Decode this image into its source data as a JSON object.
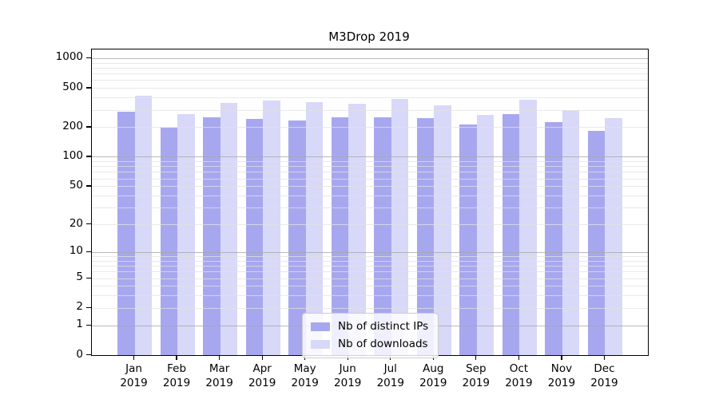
{
  "title": "M3Drop 2019",
  "colors": {
    "distinct_ips_bar": "#a7a7f0",
    "downloads_bar": "#d8d8f8",
    "grid_minor": "#e1e1e1",
    "grid_major": "#a8a8a8",
    "axis": "#000000",
    "legend_border": "#cccccc"
  },
  "legend": {
    "items": [
      {
        "label": "Nb of distinct IPs",
        "series": "distinct_ips"
      },
      {
        "label": "Nb of downloads",
        "series": "downloads"
      }
    ]
  },
  "chart_data": {
    "type": "bar",
    "title": "M3Drop 2019",
    "categories": [
      "Jan 2019",
      "Feb 2019",
      "Mar 2019",
      "Apr 2019",
      "May 2019",
      "Jun 2019",
      "Jul 2019",
      "Aug 2019",
      "Sep 2019",
      "Oct 2019",
      "Nov 2019",
      "Dec 2019"
    ],
    "x_tick_line1": [
      "Jan",
      "Feb",
      "Mar",
      "Apr",
      "May",
      "Jun",
      "Jul",
      "Aug",
      "Sep",
      "Oct",
      "Nov",
      "Dec"
    ],
    "x_tick_line2": [
      "2019",
      "2019",
      "2019",
      "2019",
      "2019",
      "2019",
      "2019",
      "2019",
      "2019",
      "2019",
      "2019",
      "2019"
    ],
    "series": [
      {
        "name": "Nb of distinct IPs",
        "color": "#a7a7f0",
        "values": [
          287,
          198,
          253,
          242,
          235,
          253,
          253,
          247,
          214,
          270,
          226,
          185
        ]
      },
      {
        "name": "Nb of downloads",
        "color": "#d8d8f8",
        "values": [
          415,
          270,
          351,
          374,
          357,
          345,
          385,
          334,
          269,
          383,
          300,
          248
        ]
      }
    ],
    "xlabel": "",
    "ylabel": "",
    "y_axis": {
      "scale": "log10(value+1)",
      "ticks": [
        0,
        1,
        2,
        5,
        10,
        20,
        50,
        100,
        200,
        500,
        1000
      ],
      "tick_labels": [
        "0",
        "1",
        "2",
        "5",
        "10",
        "20",
        "50",
        "100",
        "200",
        "500",
        "1000"
      ],
      "range": [
        0,
        1000
      ],
      "major_gridlines": [
        1,
        10,
        100,
        1000
      ],
      "grid": true
    },
    "legend_position": "bottom-center"
  }
}
